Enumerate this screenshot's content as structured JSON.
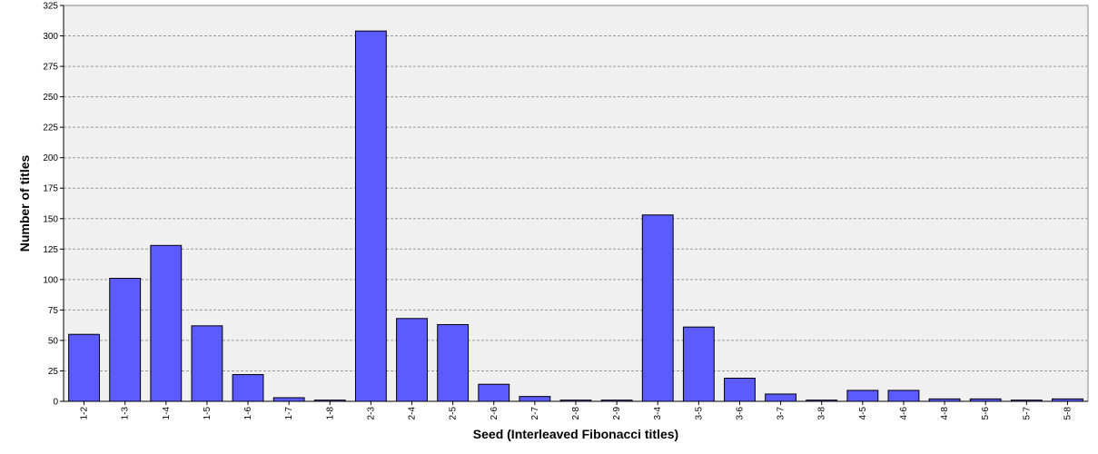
{
  "chart_data": {
    "type": "bar",
    "categories": [
      "1-2",
      "1-3",
      "1-4",
      "1-5",
      "1-6",
      "1-7",
      "1-8",
      "2-3",
      "2-4",
      "2-5",
      "2-6",
      "2-7",
      "2-8",
      "2-9",
      "3-4",
      "3-5",
      "3-6",
      "3-7",
      "3-8",
      "4-5",
      "4-6",
      "4-8",
      "5-6",
      "5-7",
      "5-8"
    ],
    "values": [
      55,
      101,
      128,
      62,
      22,
      3,
      1,
      304,
      68,
      63,
      14,
      4,
      1,
      1,
      153,
      61,
      19,
      6,
      1,
      9,
      9,
      2,
      2,
      1,
      2
    ],
    "color": "#5b5bff",
    "x_label": "Seed (Interleaved Fibonacci titles)",
    "y_label": "Number of titles",
    "ylim": [
      0,
      325
    ],
    "yticks": [
      0,
      25,
      50,
      75,
      100,
      125,
      150,
      175,
      200,
      225,
      250,
      275,
      300,
      325
    ],
    "grid": true
  }
}
